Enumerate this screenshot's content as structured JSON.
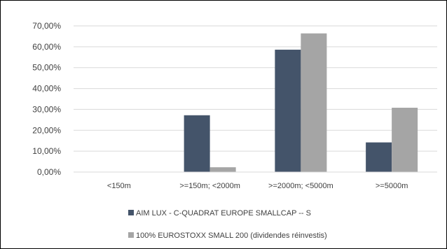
{
  "chart_data": {
    "type": "bar",
    "categories": [
      "<150m",
      ">=150m; <2000m",
      ">=2000m; <5000m",
      ">=5000m"
    ],
    "series": [
      {
        "name": "AIM LUX - C-QUADRAT EUROPE SMALLCAP -- S",
        "color": "#44546a",
        "values": [
          0,
          27.2,
          58.6,
          14.2
        ]
      },
      {
        "name": "100% EUROSTOXX SMALL 200 (dividendes réinvestis)",
        "color": "#a5a5a5",
        "values": [
          0,
          2.3,
          66.4,
          30.8
        ]
      }
    ],
    "yticks": [
      "0,00%",
      "10,00%",
      "20,00%",
      "30,00%",
      "40,00%",
      "50,00%",
      "60,00%",
      "70,00%"
    ],
    "ylim": [
      0,
      70
    ],
    "grid": true,
    "legend_position": "bottom",
    "title": "",
    "xlabel": "",
    "ylabel": ""
  }
}
